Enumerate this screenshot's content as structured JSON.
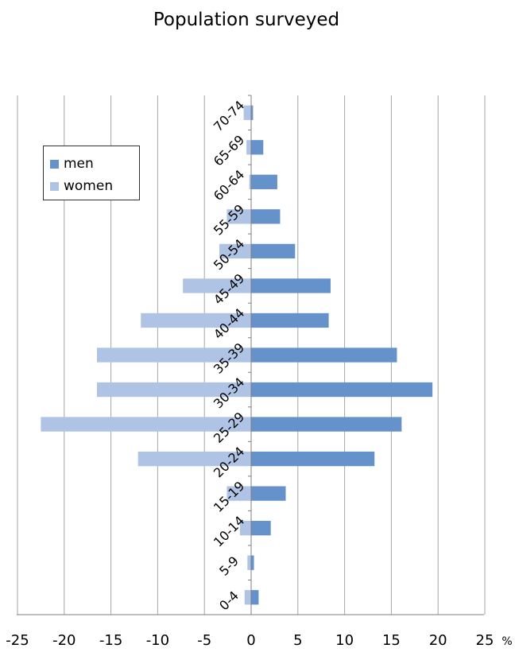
{
  "title": "Population surveyed",
  "chart_data": {
    "type": "bar",
    "orientation": "horizontal",
    "title": "Population surveyed",
    "categories": [
      "0-4",
      "5-9",
      "10-14",
      "15-19",
      "20-24",
      "25-29",
      "30-34",
      "35-39",
      "40-44",
      "45-49",
      "50-54",
      "55-59",
      "60-64",
      "65-69",
      "70-74"
    ],
    "series": [
      {
        "name": "men",
        "color": "#6592ca",
        "values": [
          0.8,
          0.3,
          2.1,
          3.7,
          13.2,
          16.1,
          19.4,
          15.6,
          8.3,
          8.5,
          4.7,
          3.1,
          2.8,
          1.3,
          0.2
        ]
      },
      {
        "name": "women",
        "color": "#afc3e5",
        "values": [
          -0.7,
          -0.4,
          -1.2,
          -2.6,
          -12.1,
          -22.5,
          -16.5,
          -16.5,
          -11.8,
          -7.3,
          -3.4,
          -2.6,
          -0.2,
          -0.5,
          -0.8
        ]
      }
    ],
    "xlim": [
      -25,
      25
    ],
    "xticks": [
      "-25",
      "-20",
      "-15",
      "-10",
      "-5",
      "0",
      "5",
      "10",
      "15",
      "20",
      "25"
    ],
    "xunit": "%",
    "xlabel": "",
    "ylabel": "",
    "grid": "vertical",
    "legend_position": "top-left"
  }
}
